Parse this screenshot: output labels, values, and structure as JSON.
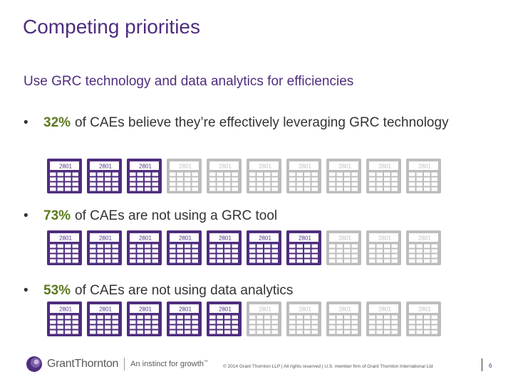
{
  "title": "Competing priorities",
  "subtitle": "Use GRC technology and data analytics for efficiencies",
  "bullet_glyph": "•",
  "calculator_display": "2801",
  "colors": {
    "highlighted": "#4f2d7f",
    "muted": "#bdbdbd",
    "percent": "#5a7a1e"
  },
  "stats": [
    {
      "percent": "32%",
      "text": "of CAEs believe they’re effectively leveraging GRC technology",
      "highlighted": 3,
      "total": 10
    },
    {
      "percent": "73%",
      "text": "of CAEs are not using a GRC tool",
      "highlighted": 7,
      "total": 10
    },
    {
      "percent": "53%",
      "text": "of CAEs are not using data analytics",
      "highlighted": 5,
      "total": 10
    }
  ],
  "footer": {
    "brand": "GrantThornton",
    "tagline": "An instinct for growth",
    "tagline_mark": "™",
    "copyright": "© 2014 Grant Thornton LLP | All rights reserved | U.S. member firm of Grant Thornton International Ltd",
    "page_number": "6"
  }
}
